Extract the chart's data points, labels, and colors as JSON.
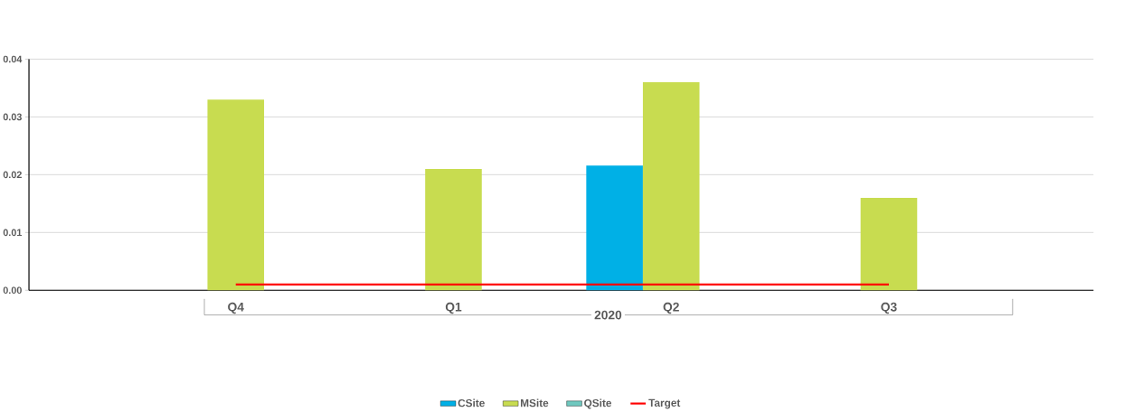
{
  "chart_data": {
    "type": "bar",
    "categories": [
      "Q4",
      "Q1",
      "Q2",
      "Q3"
    ],
    "xlabel": "2020",
    "series": [
      {
        "name": "CSite",
        "color": "#00b0e6",
        "values": [
          null,
          null,
          0.0216,
          null
        ]
      },
      {
        "name": "MSite",
        "color": "#c8dc50",
        "values": [
          0.033,
          0.021,
          0.036,
          0.016
        ]
      },
      {
        "name": "QSite",
        "color": "#6fc8bf",
        "values": [
          null,
          null,
          null,
          null
        ]
      },
      {
        "name": "Target",
        "type": "line",
        "color": "#ff0000",
        "values": [
          0.001,
          0.001,
          0.001,
          0.001
        ]
      }
    ],
    "ylim": [
      0,
      0.04
    ],
    "yticks": [
      {
        "value": 0,
        "label": "0.00"
      },
      {
        "value": 0.01,
        "label": "0.01"
      },
      {
        "value": 0.02,
        "label": "0.02"
      },
      {
        "value": 0.03,
        "label": "0.03"
      },
      {
        "value": 0.04,
        "label": "0.04"
      }
    ],
    "grid": "y",
    "legend": "bottom"
  }
}
